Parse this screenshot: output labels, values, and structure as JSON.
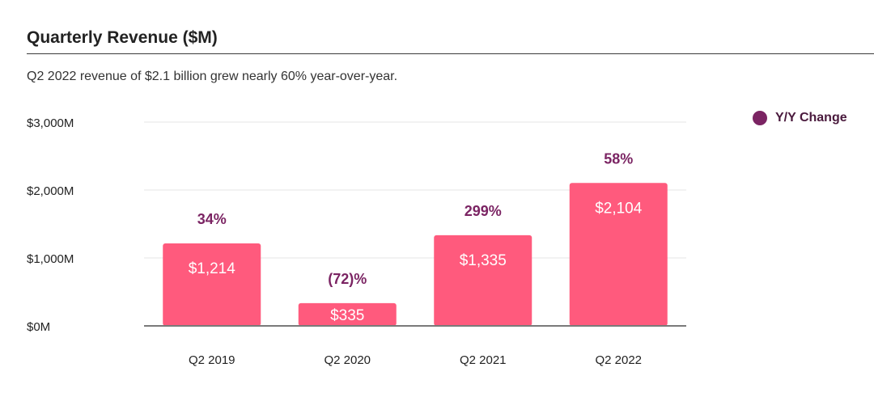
{
  "header": {
    "title": "Quarterly Revenue ($M)",
    "subtitle": "Q2 2022 revenue of $2.1 billion grew nearly 60% year-over-year."
  },
  "legend": {
    "label": "Y/Y Change",
    "color": "#7b2463"
  },
  "chart_data": {
    "type": "bar",
    "title": "Quarterly Revenue ($M)",
    "categories": [
      "Q2 2019",
      "Q2 2020",
      "Q2 2021",
      "Q2 2022"
    ],
    "values": [
      1214,
      335,
      1335,
      2104
    ],
    "value_labels": [
      "$1,214",
      "$335",
      "$1,335",
      "$2,104"
    ],
    "yoy_change": [
      "34%",
      "(72)%",
      "299%",
      "58%"
    ],
    "ylim": [
      0,
      3000
    ],
    "yticks": [
      0,
      1000,
      2000,
      3000
    ],
    "ytick_labels": [
      "$0M",
      "$1,000M",
      "$2,000M",
      "$3,000M"
    ],
    "grid": true,
    "legend_position": "top-right",
    "bar_color": "#ff5a7d",
    "annotation_color": "#7b2463"
  }
}
